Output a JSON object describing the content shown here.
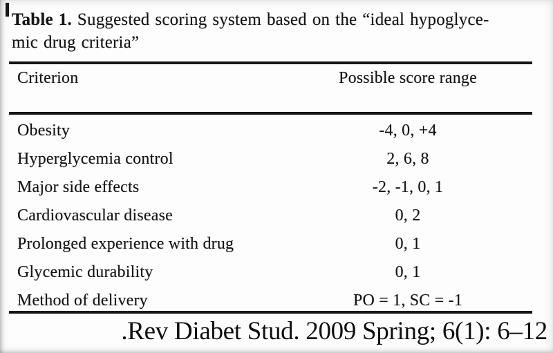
{
  "colors": {
    "ink": "#141414",
    "background": "#fdfdfd"
  },
  "table": {
    "caption_bold": "Table 1.",
    "caption_rest_line1": " Suggested scoring system based on the “ideal hypoglyce-",
    "caption_line2": "mic drug criteria”",
    "columns": [
      "Criterion",
      "Possible score range"
    ],
    "rows": [
      {
        "criterion": "Obesity",
        "score_range": "-4, 0, +4"
      },
      {
        "criterion": "Hyperglycemia control",
        "score_range": "2, 6, 8"
      },
      {
        "criterion": "Major side effects",
        "score_range": "-2, -1, 0, 1"
      },
      {
        "criterion": "Cardiovascular disease",
        "score_range": "0, 2"
      },
      {
        "criterion": "Prolonged experience with drug",
        "score_range": "0, 1"
      },
      {
        "criterion": "Glycemic durability",
        "score_range": "0, 1"
      },
      {
        "criterion": "Method of delivery",
        "score_range": "PO = 1, SC = -1"
      }
    ]
  },
  "citation": ".Rev Diabet Stud. 2009 Spring; 6(1): 6–12"
}
